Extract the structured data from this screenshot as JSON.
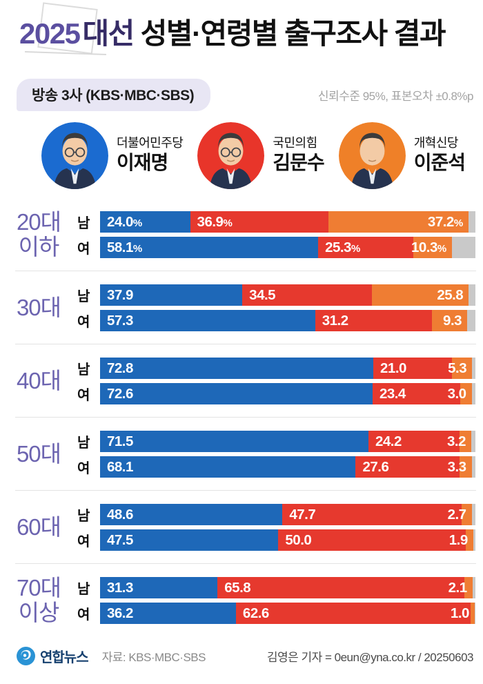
{
  "header": {
    "title_year": "2025",
    "title_word": "대선",
    "title_rest": "성별·연령별 출구조사 결과",
    "badge": "방송 3사 (KBS·MBC·SBS)",
    "note": "신뢰수준 95%, 표본오차 ±0.8%p"
  },
  "candidates": [
    {
      "party": "더불어민주당",
      "name": "이재명",
      "color": "#1b6bd0",
      "avatar": "man-with-glasses"
    },
    {
      "party": "국민의힘",
      "name": "김문수",
      "color": "#e8352a",
      "avatar": "man-with-glasses"
    },
    {
      "party": "개혁신당",
      "name": "이준석",
      "color": "#ef8028",
      "avatar": "young-man"
    }
  ],
  "chart_data": {
    "type": "bar",
    "stacked": true,
    "unit": "%",
    "orientation": "horizontal",
    "xlim": [
      0,
      100
    ],
    "series_names": [
      "이재명",
      "김문수",
      "이준석"
    ],
    "series_colors": [
      "#1e68b8",
      "#e6392e",
      "#ef7d33"
    ],
    "remainder_color": "#c9c9c9",
    "groups": [
      {
        "age_lines": [
          "20대",
          "이하"
        ],
        "rows": [
          {
            "gender": "남",
            "values": [
              24.0,
              36.9,
              37.2
            ],
            "labels": [
              "24.0%",
              "36.9%",
              "37.2%"
            ]
          },
          {
            "gender": "여",
            "values": [
              58.1,
              25.3,
              10.3
            ],
            "labels": [
              "58.1%",
              "25.3%",
              "10.3%"
            ]
          }
        ]
      },
      {
        "age_lines": [
          "30대"
        ],
        "rows": [
          {
            "gender": "남",
            "values": [
              37.9,
              34.5,
              25.8
            ],
            "labels": [
              "37.9",
              "34.5",
              "25.8"
            ]
          },
          {
            "gender": "여",
            "values": [
              57.3,
              31.2,
              9.3
            ],
            "labels": [
              "57.3",
              "31.2",
              "9.3"
            ]
          }
        ]
      },
      {
        "age_lines": [
          "40대"
        ],
        "rows": [
          {
            "gender": "남",
            "values": [
              72.8,
              21.0,
              5.3
            ],
            "labels": [
              "72.8",
              "21.0",
              "5.3"
            ]
          },
          {
            "gender": "여",
            "values": [
              72.6,
              23.4,
              3.0
            ],
            "labels": [
              "72.6",
              "23.4",
              "3.0"
            ]
          }
        ]
      },
      {
        "age_lines": [
          "50대"
        ],
        "rows": [
          {
            "gender": "남",
            "values": [
              71.5,
              24.2,
              3.2
            ],
            "labels": [
              "71.5",
              "24.2",
              "3.2"
            ]
          },
          {
            "gender": "여",
            "values": [
              68.1,
              27.6,
              3.3
            ],
            "labels": [
              "68.1",
              "27.6",
              "3.3"
            ]
          }
        ]
      },
      {
        "age_lines": [
          "60대"
        ],
        "rows": [
          {
            "gender": "남",
            "values": [
              48.6,
              47.7,
              2.7
            ],
            "labels": [
              "48.6",
              "47.7",
              "2.7"
            ]
          },
          {
            "gender": "여",
            "values": [
              47.5,
              50.0,
              1.9
            ],
            "labels": [
              "47.5",
              "50.0",
              "1.9"
            ]
          }
        ]
      },
      {
        "age_lines": [
          "70대",
          "이상"
        ],
        "rows": [
          {
            "gender": "남",
            "values": [
              31.3,
              65.8,
              2.1
            ],
            "labels": [
              "31.3",
              "65.8",
              "2.1"
            ]
          },
          {
            "gender": "여",
            "values": [
              36.2,
              62.6,
              1.0
            ],
            "labels": [
              "36.2",
              "62.6",
              "1.0"
            ]
          }
        ]
      }
    ]
  },
  "footer": {
    "brand": "연합뉴스",
    "source": "자료: KBS·MBC·SBS",
    "credit": "김영은 기자 = 0eun@yna.co.kr / 20250603"
  }
}
